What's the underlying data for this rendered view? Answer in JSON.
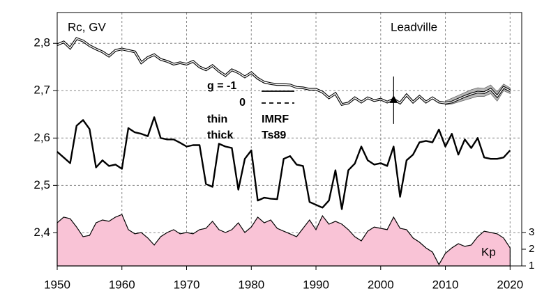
{
  "chart_data": {
    "type": "line",
    "title": "Leadville",
    "y_label": "Rc, GV",
    "x": [
      1950,
      1951,
      1952,
      1953,
      1954,
      1955,
      1956,
      1957,
      1958,
      1959,
      1960,
      1961,
      1962,
      1963,
      1964,
      1965,
      1966,
      1967,
      1968,
      1969,
      1970,
      1971,
      1972,
      1973,
      1974,
      1975,
      1976,
      1977,
      1978,
      1979,
      1980,
      1981,
      1982,
      1983,
      1984,
      1985,
      1986,
      1987,
      1988,
      1989,
      1990,
      1991,
      1992,
      1993,
      1994,
      1995,
      1996,
      1997,
      1998,
      1999,
      2000,
      2001,
      2002,
      2003,
      2004,
      2005,
      2006,
      2007,
      2008,
      2009,
      2010,
      2011,
      2012,
      2013,
      2014,
      2015,
      2016,
      2017,
      2018,
      2019,
      2020
    ],
    "series": [
      {
        "name": "IMRF",
        "style": "thin",
        "color": "#000000",
        "values": [
          2.797,
          2.803,
          2.79,
          2.81,
          2.805,
          2.795,
          2.788,
          2.782,
          2.773,
          2.785,
          2.788,
          2.785,
          2.782,
          2.759,
          2.77,
          2.776,
          2.766,
          2.762,
          2.756,
          2.759,
          2.756,
          2.762,
          2.75,
          2.744,
          2.753,
          2.741,
          2.732,
          2.744,
          2.738,
          2.729,
          2.738,
          2.726,
          2.718,
          2.715,
          2.713,
          2.713,
          2.712,
          2.707,
          2.706,
          2.703,
          2.703,
          2.697,
          2.685,
          2.694,
          2.671,
          2.674,
          2.685,
          2.676,
          2.685,
          2.679,
          2.682,
          2.676,
          2.682,
          2.674,
          2.691,
          2.676,
          2.688,
          2.676,
          2.685,
          2.676,
          2.674,
          2.676,
          2.682,
          2.688,
          2.693,
          2.697,
          2.696,
          2.703,
          2.688,
          2.707,
          2.7
        ]
      },
      {
        "name": "Ts89",
        "style": "thick",
        "color": "#000000",
        "values": [
          2.571,
          2.559,
          2.547,
          2.626,
          2.638,
          2.619,
          2.538,
          2.553,
          2.541,
          2.544,
          2.535,
          2.621,
          2.612,
          2.609,
          2.604,
          2.644,
          2.6,
          2.597,
          2.597,
          2.59,
          2.582,
          2.585,
          2.585,
          2.503,
          2.497,
          2.588,
          2.582,
          2.579,
          2.491,
          2.556,
          2.574,
          2.468,
          2.474,
          2.472,
          2.471,
          2.556,
          2.562,
          2.544,
          2.541,
          2.465,
          2.459,
          2.453,
          2.468,
          2.532,
          2.45,
          2.532,
          2.546,
          2.582,
          2.553,
          2.544,
          2.547,
          2.541,
          2.582,
          2.476,
          2.553,
          2.565,
          2.591,
          2.594,
          2.591,
          2.618,
          2.582,
          2.609,
          2.565,
          2.597,
          2.579,
          2.6,
          2.559,
          2.556,
          2.556,
          2.559,
          2.574
        ]
      },
      {
        "name": "Kp",
        "axis": "y2",
        "color": "#f9c3d6",
        "values": [
          3.58,
          3.92,
          3.83,
          3.33,
          2.75,
          2.83,
          3.58,
          3.75,
          3.67,
          3.92,
          4.08,
          3.17,
          2.92,
          3.0,
          2.67,
          2.25,
          2.75,
          3.0,
          3.17,
          2.92,
          3.0,
          2.92,
          3.17,
          3.25,
          3.67,
          3.17,
          3.0,
          3.17,
          3.58,
          3.0,
          3.33,
          3.92,
          3.58,
          3.75,
          3.25,
          3.08,
          2.92,
          2.75,
          3.25,
          3.75,
          3.17,
          4.0,
          3.5,
          3.67,
          3.5,
          3.17,
          2.75,
          2.5,
          3.08,
          3.33,
          3.25,
          3.17,
          3.92,
          3.25,
          3.17,
          2.67,
          2.42,
          2.08,
          1.83,
          1.08,
          1.75,
          2.08,
          2.33,
          2.17,
          2.25,
          2.75,
          3.08,
          3.0,
          2.92,
          2.67,
          2.08
        ]
      }
    ],
    "band": {
      "x": [
        2010,
        2011,
        2012,
        2013,
        2014,
        2015,
        2016,
        2017,
        2018,
        2019,
        2020
      ],
      "upper": [
        2.678,
        2.684,
        2.69,
        2.696,
        2.702,
        2.706,
        2.705,
        2.712,
        2.698,
        2.714,
        2.706
      ],
      "lower": [
        2.67,
        2.672,
        2.676,
        2.68,
        2.684,
        2.688,
        2.688,
        2.694,
        2.678,
        2.7,
        2.694
      ],
      "color": "#b8b8b8"
    },
    "point": {
      "x": 2002,
      "y": 2.68,
      "error": 0.05
    },
    "legend_labels": [
      {
        "text": "g  = -1",
        "dash": "solid"
      },
      {
        "text": "0",
        "dash": "dashed"
      }
    ],
    "xlim": [
      1950,
      2021.8
    ],
    "xticks": [
      1950,
      1960,
      1970,
      1980,
      1990,
      2000,
      2010,
      2020
    ],
    "ylim": [
      2.33,
      2.865
    ],
    "yticks": [
      {
        "value": 2.4,
        "label": "2,4"
      },
      {
        "value": 2.5,
        "label": "2,5"
      },
      {
        "value": 2.6,
        "label": "2,6"
      },
      {
        "value": 2.7,
        "label": "2,7"
      },
      {
        "value": 2.8,
        "label": "2,8"
      }
    ],
    "y2lim": [
      1,
      16.17
    ],
    "y2ticks": [
      1,
      2,
      3
    ],
    "grid": true
  }
}
